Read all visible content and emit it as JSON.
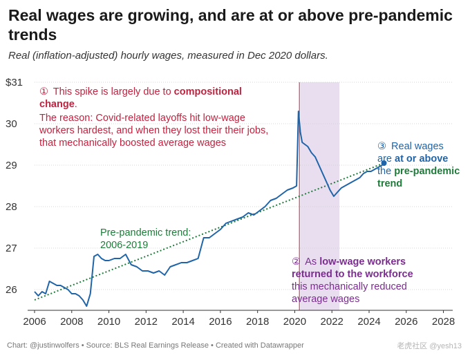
{
  "title": "Real wages are growing, and are at or above pre-pandemic trends",
  "subtitle": "Real (inflation-adjusted) hourly wages, measured in Dec 2020 dollars.",
  "footer": "Chart: @justinwolfers • Source: BLS Real Earnings Release • Created with Datawrapper",
  "watermark": "老虎社区 @yesh13",
  "colors": {
    "line": "#1f64a8",
    "trend": "#1e7b3a",
    "annotation_red": "#c0233f",
    "annotation_purple": "#7a2d8e",
    "shade": "#e4d5ec",
    "vline": "#a0294a"
  },
  "annotations": {
    "a1_num": "①",
    "a1_l1a": "This spike is largely due to ",
    "a1_l1b": "compositional",
    "a1_l2": "change",
    "a1_l2end": ".",
    "a1_l3": "The reason: Covid-related layoffs hit low-wage",
    "a1_l4": "workers hardest, and when they lost their their jobs,",
    "a1_l5": "that mechanically boosted average wages",
    "a2_num": "②",
    "a2_l1a": "As ",
    "a2_l1b": "low-wage workers",
    "a2_l2": "returned to the workforce",
    "a2_l3": "this mechanically reduced",
    "a2_l4": "average wages",
    "a3_num": "③",
    "a3_l1": "Real wages",
    "a3_l2a": "are ",
    "a3_l2b": "at or above",
    "a3_l3a": "the ",
    "a3_l3b": "pre-pandemic",
    "a3_l4": "trend",
    "trend_l1": "Pre-pandemic trend:",
    "trend_l2": "2006-2019"
  },
  "chart_data": {
    "type": "line",
    "xlim": [
      2006,
      2028.5
    ],
    "ylim": [
      25.5,
      31
    ],
    "x_ticks": [
      2006,
      2008,
      2010,
      2012,
      2014,
      2016,
      2018,
      2020,
      2022,
      2024,
      2026,
      2028
    ],
    "x_tick_labels": [
      "2006",
      "2008",
      "2010",
      "2012",
      "2014",
      "2016",
      "2018",
      "2020",
      "2022",
      "2024",
      "2026",
      "2028"
    ],
    "y_ticks": [
      26,
      27,
      28,
      29,
      30,
      31
    ],
    "y_tick_labels": [
      "26",
      "27",
      "28",
      "29",
      "30",
      "$31"
    ],
    "grid": true,
    "shaded_region": [
      2020.3,
      2022.4
    ],
    "vertical_line": 2020.25,
    "trend": {
      "x": [
        2006,
        2024.8
      ],
      "y": [
        25.75,
        29.05
      ]
    },
    "series": [
      {
        "x": [
          2006.0,
          2006.2,
          2006.4,
          2006.6,
          2006.8,
          2007.0,
          2007.2,
          2007.4,
          2007.6,
          2007.8,
          2008.0,
          2008.2,
          2008.4,
          2008.6,
          2008.8,
          2009.0,
          2009.2,
          2009.4,
          2009.6,
          2009.8,
          2010.0,
          2010.3,
          2010.6,
          2010.9,
          2011.2,
          2011.5,
          2011.8,
          2012.1,
          2012.4,
          2012.7,
          2013.0,
          2013.3,
          2013.6,
          2013.9,
          2014.2,
          2014.5,
          2014.8,
          2015.1,
          2015.4,
          2015.7,
          2016.0,
          2016.3,
          2016.6,
          2016.9,
          2017.2,
          2017.5,
          2017.8,
          2018.1,
          2018.4,
          2018.7,
          2019.0,
          2019.3,
          2019.6,
          2019.9,
          2020.1,
          2020.2,
          2020.3,
          2020.4,
          2020.55,
          2020.7,
          2020.9,
          2021.1,
          2021.3,
          2021.5,
          2021.7,
          2021.9,
          2022.1,
          2022.3,
          2022.5,
          2022.7,
          2022.9,
          2023.1,
          2023.3,
          2023.5,
          2023.7,
          2023.9,
          2024.1,
          2024.3,
          2024.5,
          2024.7,
          2024.8
        ],
        "values": [
          25.95,
          25.85,
          25.95,
          25.9,
          26.2,
          26.15,
          26.1,
          26.1,
          26.05,
          26.0,
          25.9,
          25.9,
          25.85,
          25.75,
          25.6,
          25.9,
          26.8,
          26.85,
          26.75,
          26.7,
          26.7,
          26.75,
          26.75,
          26.85,
          26.6,
          26.55,
          26.45,
          26.45,
          26.4,
          26.45,
          26.35,
          26.55,
          26.6,
          26.65,
          26.65,
          26.7,
          26.75,
          27.25,
          27.25,
          27.35,
          27.45,
          27.6,
          27.65,
          27.7,
          27.75,
          27.85,
          27.8,
          27.9,
          28.0,
          28.15,
          28.2,
          28.3,
          28.4,
          28.45,
          28.5,
          30.3,
          29.8,
          29.55,
          29.5,
          29.45,
          29.3,
          29.2,
          29.0,
          28.8,
          28.6,
          28.4,
          28.25,
          28.35,
          28.45,
          28.5,
          28.55,
          28.6,
          28.65,
          28.7,
          28.8,
          28.85,
          28.85,
          28.9,
          28.95,
          29.0,
          29.05
        ]
      }
    ]
  }
}
